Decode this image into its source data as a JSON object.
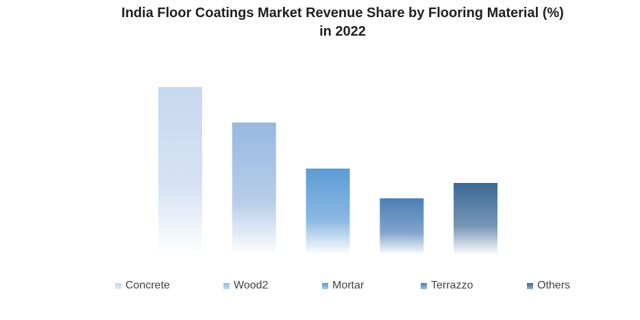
{
  "title": {
    "line1": "India Floor Coatings Market Revenue Share by Flooring Material (%)",
    "line2": "in 2022"
  },
  "chart_data": {
    "type": "bar",
    "title": "India Floor Coatings Market Revenue Share by Flooring Material (%) in 2022",
    "categories": [
      "Concrete",
      "Wood2",
      "Mortar",
      "Terrazzo",
      "Others"
    ],
    "values": [
      35,
      27.6,
      18,
      11.8,
      15
    ],
    "ylim": [
      0,
      40
    ],
    "colors": [
      "#c6d7ef",
      "#98b8e0",
      "#5b9bd5",
      "#4a7eb4",
      "#3b6996"
    ],
    "grid": false,
    "legend_position": "bottom",
    "xlabel": "",
    "ylabel": ""
  }
}
